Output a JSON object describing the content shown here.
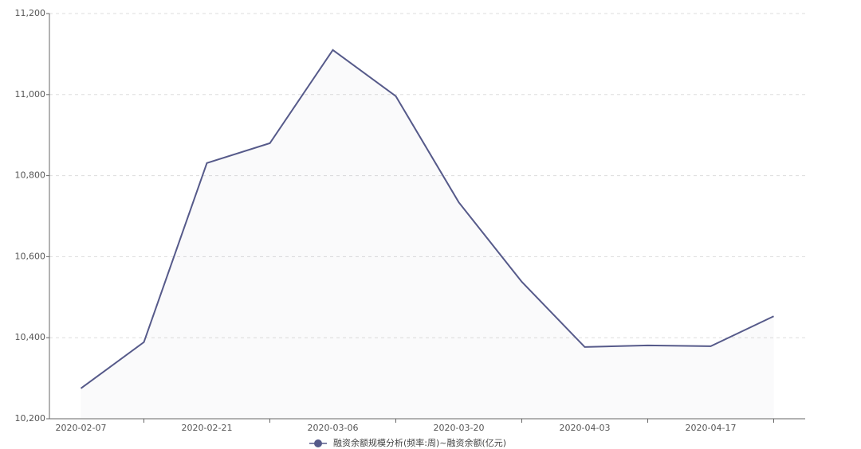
{
  "chart_data": {
    "type": "line",
    "categories": [
      "2020-02-07",
      null,
      "2020-02-21",
      null,
      "2020-03-06",
      null,
      "2020-03-20",
      null,
      "2020-04-03",
      null,
      "2020-04-17",
      null
    ],
    "series": [
      {
        "name": "融资余额规模分析(频率:周)~融资余额(亿元)",
        "color": "#565a8a",
        "values": [
          10275,
          10389,
          10831,
          10880,
          11110,
          10996,
          10734,
          10538,
          10377,
          10381,
          10379,
          10453
        ]
      }
    ],
    "ylim": [
      10200,
      11200
    ],
    "yticks": [
      {
        "value": 10200,
        "label": "10,200"
      },
      {
        "value": 10400,
        "label": "10,400"
      },
      {
        "value": 10600,
        "label": "10,600"
      },
      {
        "value": 10800,
        "label": "10,800"
      },
      {
        "value": 11000,
        "label": "11,000"
      },
      {
        "value": 11200,
        "label": "11,200"
      }
    ],
    "grid": true
  }
}
